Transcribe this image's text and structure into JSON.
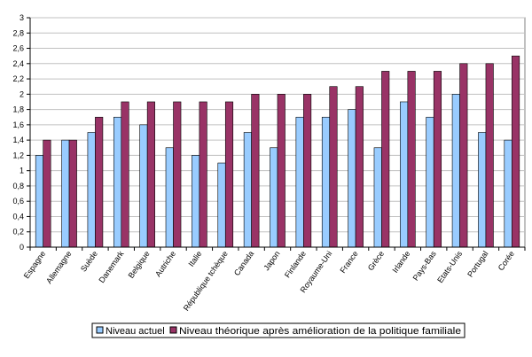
{
  "colors": {
    "background": "#ffffff",
    "plot_border": "#808080",
    "gridline": "#c0c0c0",
    "axis": "#000000",
    "series_current": "#99ccff",
    "series_theoretical": "#993366"
  },
  "chart_data": {
    "type": "bar",
    "categories": [
      "Espagne",
      "Allemagne",
      "Suède",
      "Danemark",
      "Belgique",
      "Autriche",
      "Italie",
      "République tchèque",
      "Canada",
      "Japon",
      "Finlande",
      "Royaume-Uni",
      "France",
      "Grèce",
      "Irlande",
      "Pays-Bas",
      "Etats-Unis",
      "Portugal",
      "Corée"
    ],
    "series": [
      {
        "name": "Niveau actuel",
        "values": [
          1.2,
          1.4,
          1.5,
          1.7,
          1.6,
          1.3,
          1.2,
          1.1,
          1.5,
          1.3,
          1.7,
          1.7,
          1.8,
          1.3,
          1.9,
          1.7,
          2.0,
          1.5,
          1.4
        ]
      },
      {
        "name": "Niveau théorique après amélioration de la politique familiale",
        "values": [
          1.4,
          1.4,
          1.7,
          1.9,
          1.9,
          1.9,
          1.9,
          1.9,
          2.0,
          2.0,
          2.0,
          2.1,
          2.1,
          2.3,
          2.3,
          2.3,
          2.4,
          2.4,
          2.5
        ]
      }
    ],
    "yticks": [
      "0",
      "0,2",
      "0,4",
      "0,6",
      "0,8",
      "1",
      "1,2",
      "1,4",
      "1,6",
      "1,8",
      "2",
      "2,2",
      "2,4",
      "2,6",
      "2,8",
      "3"
    ],
    "ylim": [
      0,
      3
    ],
    "grid": true,
    "legend": "bottom",
    "title": "",
    "xlabel": "",
    "ylabel": ""
  }
}
